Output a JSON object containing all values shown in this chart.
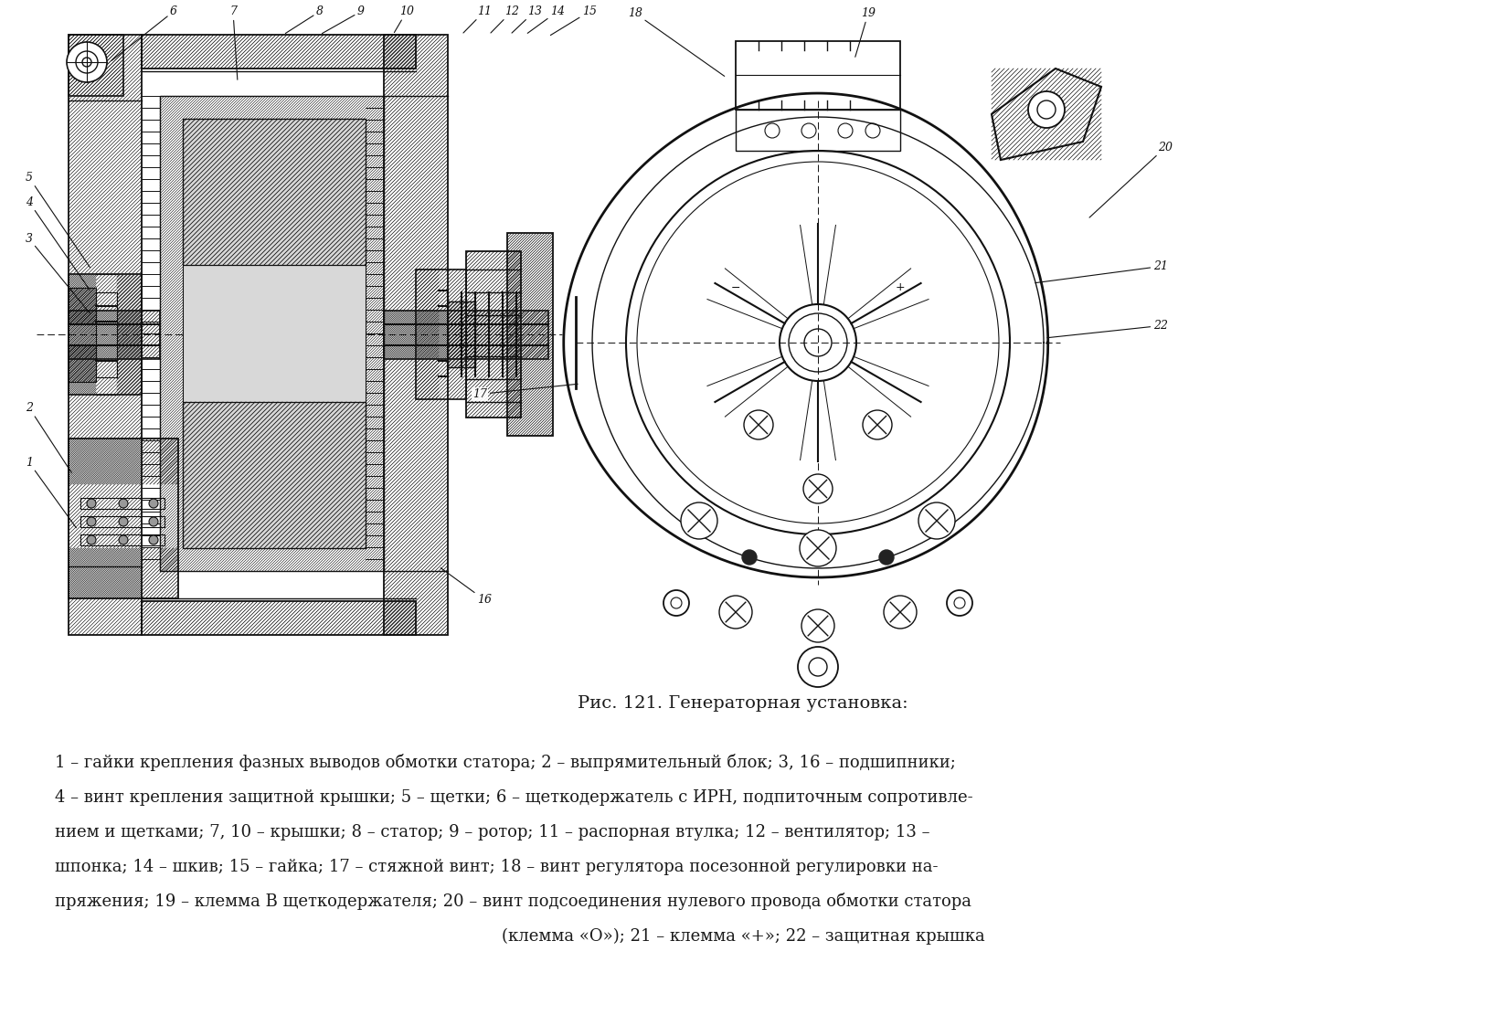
{
  "title": "Рис. 121. Генераторная установка:",
  "line1": "1 – гайки крепления фазных выводов обмотки статора; 2 – выпрямительный блок; 3, 16 – подшипники;",
  "line2": "4 – винт крепления защитной крышки; 5 – щетки; 6 – щеткодержатель с ИРН, подпиточным сопротивле-",
  "line3": "нием и щетками; 7, 10 – крышки; 8 – статор; 9 – ротор; 11 – распорная втулка; 12 – вентилятор; 13 –",
  "line4": "шпонка; 14 – шкив; 15 – гайка; 17 – стяжной винт; 18 – винт регулятора посезонной регулировки на-",
  "line5": "пряжения; 19 – клемма В щеткодержателя; 20 – винт подсоединения нулевого провода обмотки статора",
  "line6": "(клемма «О»); 21 – клемма «+»; 22 – защитная крышка",
  "bg_color": "#ffffff",
  "text_color": "#1a1a1a",
  "drawing_color": "#111111",
  "title_fontsize": 14,
  "caption_fontsize": 13,
  "title_italic_nums": true
}
